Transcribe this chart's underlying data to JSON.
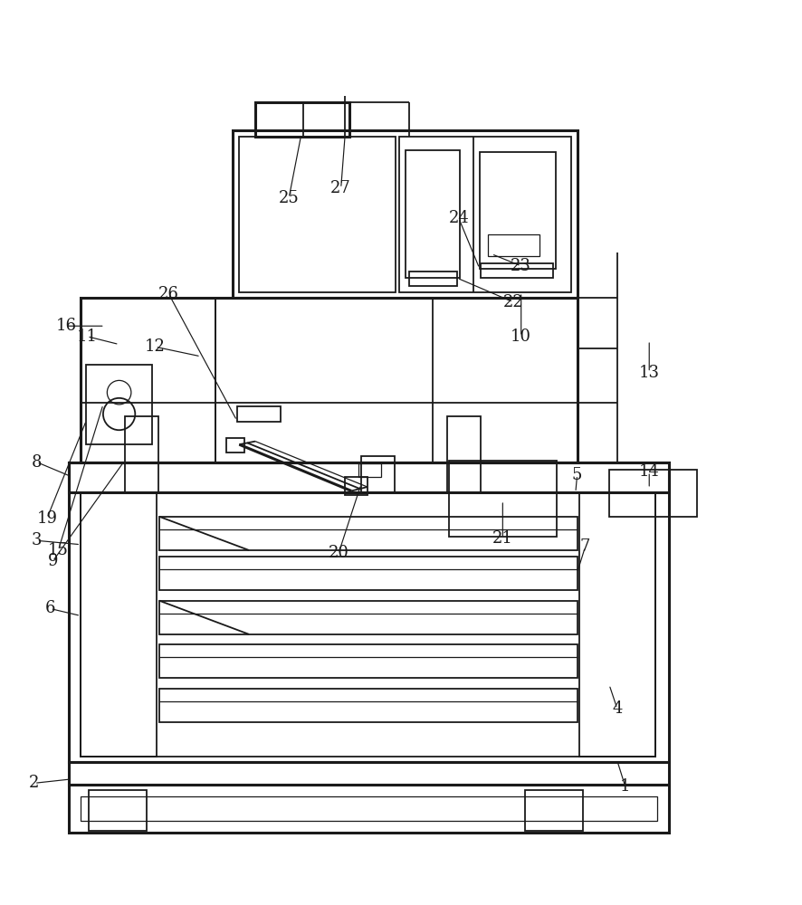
{
  "bg": "#ffffff",
  "lc": "#1a1a1a",
  "lw_thin": 0.9,
  "lw_med": 1.3,
  "lw_thick": 2.2,
  "fig_w": 8.86,
  "fig_h": 10.0,
  "dpi": 100
}
